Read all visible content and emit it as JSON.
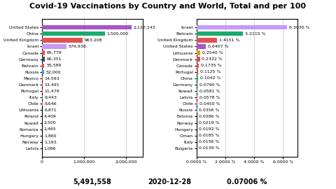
{
  "title": "Covid-19 Vaccinations by Country and World, Total and per 100",
  "annotations": [
    "5,491,558",
    "2020-12-28",
    "0.07006 %"
  ],
  "chart_data": [
    {
      "type": "bar",
      "orientation": "horizontal",
      "categories": [
        "United States",
        "China",
        "United Kingdom",
        "Israel",
        "Canada",
        "Germany",
        "Bahrain",
        "Russia",
        "Mexico",
        "Denmark",
        "Portugal",
        "Italy",
        "Chile",
        "Lithuania",
        "Poland",
        "Kuwait",
        "Romania",
        "Hungary",
        "Norway",
        "Latvia"
      ],
      "values": [
        2127143,
        1500000,
        963208,
        579938,
        65779,
        66351,
        55589,
        52000,
        14593,
        13491,
        11479,
        9443,
        8646,
        6871,
        4409,
        2500,
        2465,
        1860,
        1193,
        1086
      ],
      "value_labels": [
        "2,127,143",
        "1,500,000",
        "963,208",
        "579,938",
        "65,779",
        "66,351",
        "55,589",
        "52,000",
        "14,593",
        "13,491",
        "11,479",
        "9,443",
        "8,646",
        "6,871",
        "4,409",
        "2,500",
        "2,465",
        "1,860",
        "1,193",
        "1,086"
      ],
      "colors": [
        "#a855c8",
        "#1aab6d",
        "#e05252",
        "#c79af5",
        "#e05252",
        "#444444",
        "#e05252",
        "#4a90d9",
        "#e05252",
        "#e05252",
        "#e05252",
        "#1aab6d",
        "#e05252",
        "#d4a017",
        "#e05252",
        "#1aab6d",
        "#d4a017",
        "#e05252",
        "#e05252",
        "#e05252"
      ],
      "xlim": [
        0,
        2400000
      ],
      "xticks": [
        0,
        {
          "value": 1000000,
          "label": "1,000,000"
        },
        {
          "value": 2000000,
          "label": "2,000,000"
        }
      ],
      "grid": true,
      "data_labels": true
    },
    {
      "type": "bar",
      "orientation": "horizontal",
      "categories": [
        "Israel",
        "Bahrain",
        "United Kingdom",
        "United States",
        "Lithuania",
        "Denmark",
        "Canada",
        "Portugal",
        "China",
        "Germany",
        "Kuwait",
        "Latvia",
        "Chile",
        "Russia",
        "Estonia",
        "Norway",
        "Hungary",
        "Oman",
        "Italy",
        "Bulgaria"
      ],
      "values": [
        6.303,
        3.2115,
        1.4151,
        0.6407,
        0.254,
        0.2322,
        0.1735,
        0.1125,
        0.1042,
        0.079,
        0.0581,
        0.0578,
        0.045,
        0.0356,
        0.0286,
        0.0219,
        0.0192,
        0.0185,
        0.0156,
        0.0139
      ],
      "value_labels": [
        "6.3030 %",
        "3.2115 %",
        "1.4151 %",
        "0.6407 %",
        "0.2540 %",
        "0.2322 %",
        "0.1735 %",
        "0.1125 %",
        "0.1042 %",
        "0.0790 %",
        "0.0581 %",
        "0.0578 %",
        "0.0450 %",
        "0.0356 %",
        "0.0286 %",
        "0.0219 %",
        "0.0192 %",
        "0.0185 %",
        "0.0156 %",
        "0.0139 %"
      ],
      "colors": [
        "#c79af5",
        "#1aab6d",
        "#e05252",
        "#a855c8",
        "#d4a017",
        "#e05252",
        "#e05252",
        "#e05252",
        "#1aab6d",
        "#444444",
        "#1aab6d",
        "#e05252",
        "#e05252",
        "#4a90d9",
        "#888888",
        "#e05252",
        "#e05252",
        "#8b4513",
        "#1aab6d",
        "#1aab6d"
      ],
      "xlim": [
        0,
        7.0
      ],
      "xticks": [
        {
          "value": 0,
          "label": "0.0000 %"
        },
        {
          "value": 2.0,
          "label": "2.0000 %"
        },
        {
          "value": 4.0,
          "label": "4.0000 %"
        },
        {
          "value": 6.0,
          "label": "6.0000 %"
        }
      ],
      "grid": true,
      "data_labels": true
    }
  ]
}
